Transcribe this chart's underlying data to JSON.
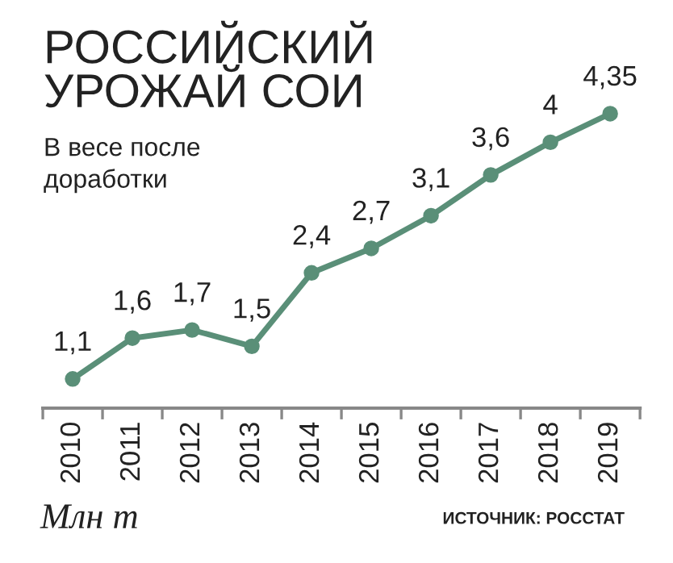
{
  "chart_data": {
    "type": "line",
    "title": "РОССИЙСКИЙ\nУРОЖАЙ СОИ",
    "subtitle": "В весе после\nдоработки",
    "categories": [
      "2010",
      "2011",
      "2012",
      "2013",
      "2014",
      "2015",
      "2016",
      "2017",
      "2018",
      "2019"
    ],
    "series": [
      {
        "color": "#5a8f78",
        "values": [
          1.1,
          1.6,
          1.7,
          1.5,
          2.4,
          2.7,
          3.1,
          3.6,
          4,
          4.35
        ],
        "value_labels": [
          "1,1",
          "1,6",
          "1,7",
          "1,5",
          "2,4",
          "2,7",
          "3,1",
          "3,6",
          "4",
          "4,35"
        ]
      }
    ],
    "tick_labels": "x",
    "marker": "circle",
    "line_style": "solid",
    "grid": false,
    "legend": false,
    "annotations": [
      "Млн т",
      "ИСТОЧНИК: РОССТАТ"
    ]
  }
}
